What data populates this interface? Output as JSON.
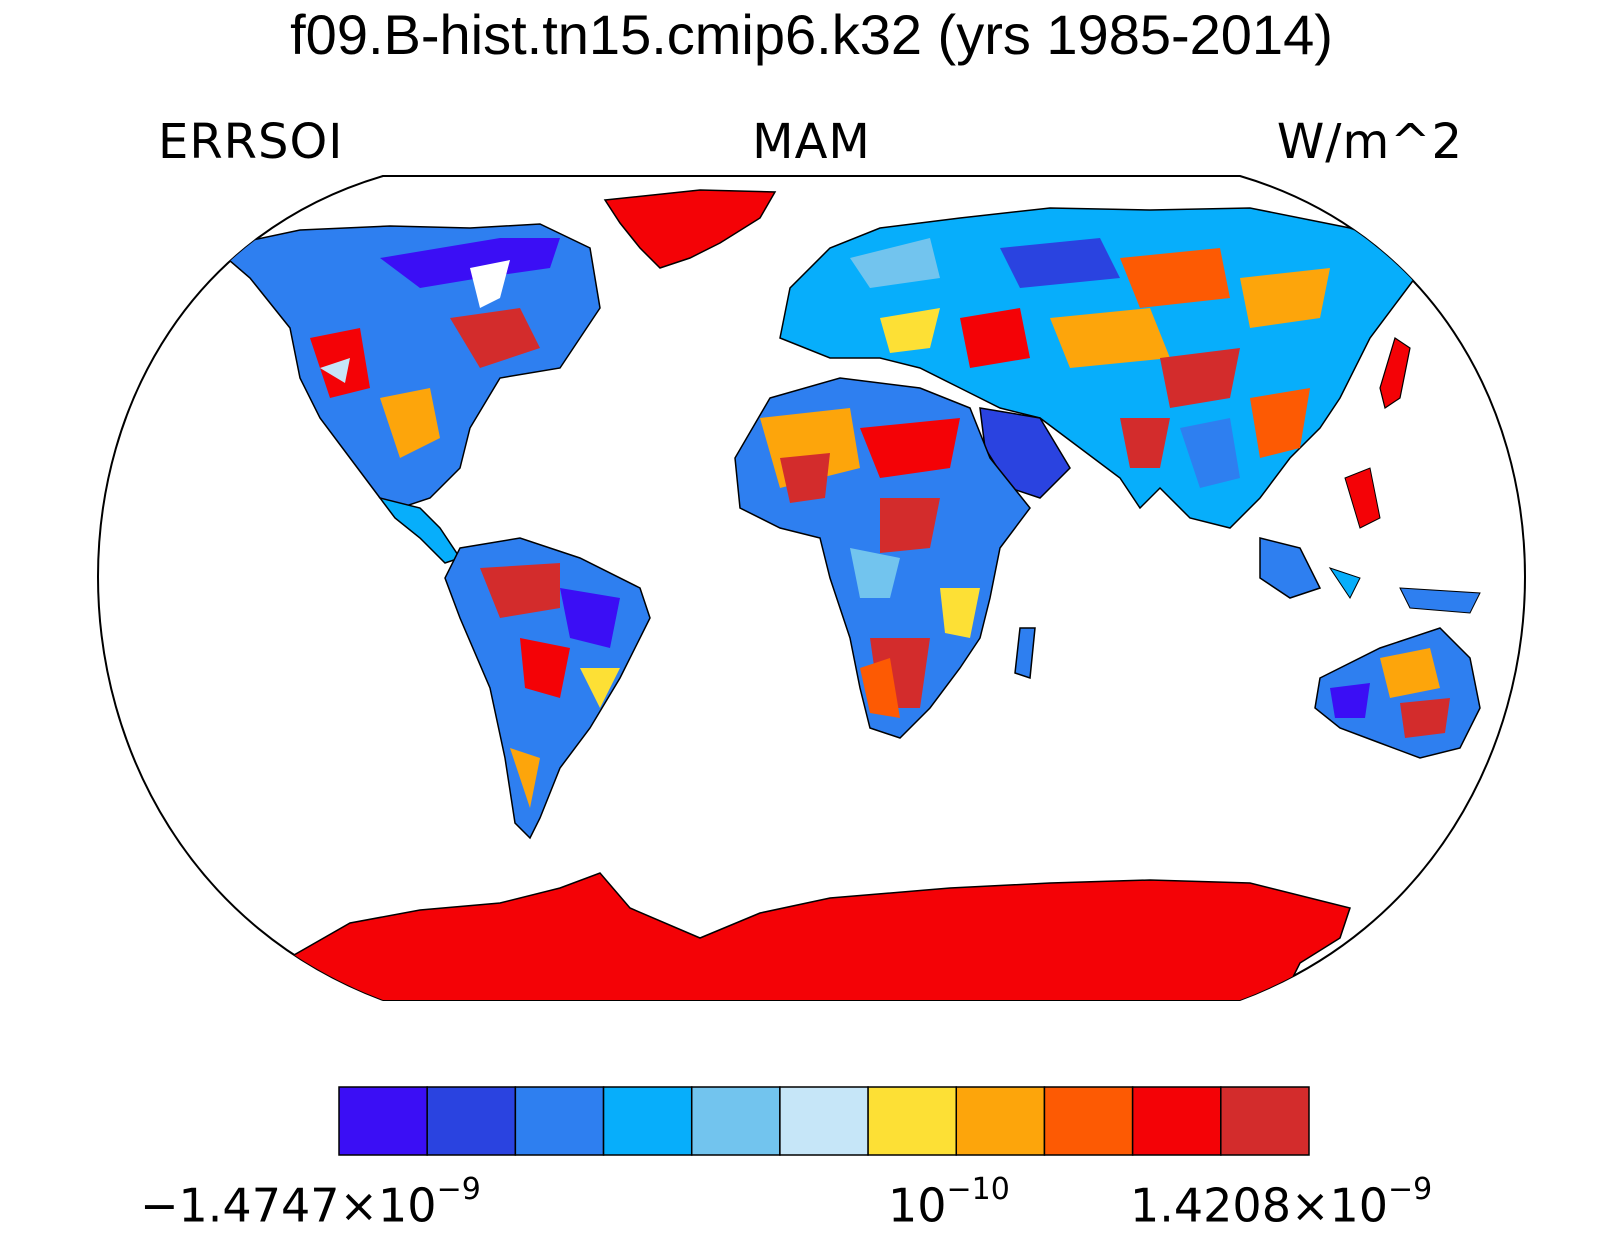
{
  "title": "f09.B-hist.tn15.cmip6.k32 (yrs 1985-2014)",
  "variable": "ERRSOI",
  "season": "MAM",
  "units": "W/m^2",
  "colorbar": {
    "colors": [
      "#3b0ef5",
      "#2a43e0",
      "#2e7ff0",
      "#07aefb",
      "#72c4ee",
      "#c6e6f8",
      "#fde035",
      "#fda50b",
      "#fd5a03",
      "#f40206",
      "#d32c2c"
    ],
    "min_label": {
      "mantissa": "−1.4747×10",
      "exponent": "−9"
    },
    "mid_label": {
      "mantissa": "10",
      "exponent": "−10"
    },
    "max_label": {
      "mantissa": "1.4208×10",
      "exponent": "−9"
    }
  },
  "map": {
    "projection": "Robinson",
    "notable_regions": [
      {
        "name": "Greenland",
        "color": "#f40206"
      },
      {
        "name": "Antarctica",
        "color": "#f40206"
      }
    ]
  }
}
